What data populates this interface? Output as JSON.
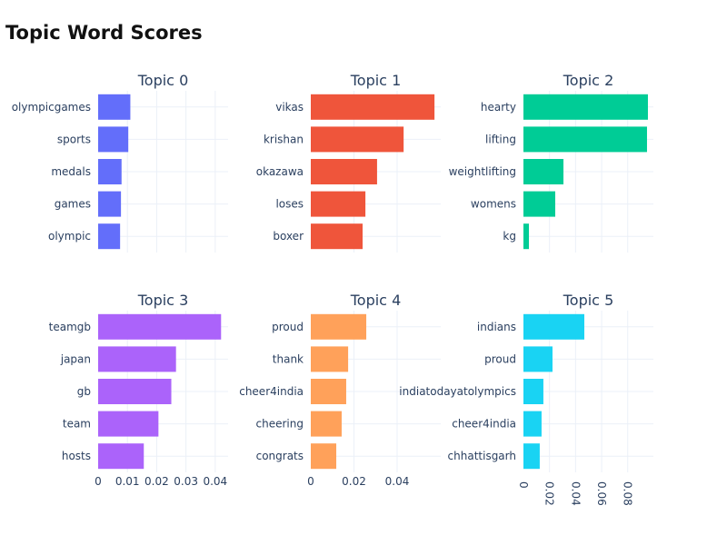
{
  "chart_data": {
    "type": "bar",
    "orientation": "horizontal",
    "title": "Topic Word Scores",
    "grid": true,
    "subplots": [
      {
        "title": "Topic 0",
        "color": "#636efa",
        "words": [
          "olympicgames",
          "sports",
          "medals",
          "games",
          "olympic"
        ],
        "values": [
          0.011,
          0.0103,
          0.008,
          0.0078,
          0.0075
        ],
        "xlim": [
          0,
          0.0444
        ],
        "ticks": [
          "0",
          "0.01",
          "0.02",
          "0.03",
          "0.04"
        ],
        "tick_values": [
          0,
          0.01,
          0.02,
          0.03,
          0.04
        ],
        "show_ticks": false
      },
      {
        "title": "Topic 1",
        "color": "#ef553b",
        "words": [
          "vikas",
          "krishan",
          "okazawa",
          "loses",
          "boxer"
        ],
        "values": [
          0.0573,
          0.043,
          0.0307,
          0.0253,
          0.024
        ],
        "xlim": [
          0,
          0.0602
        ],
        "ticks": [
          "0",
          "0.02",
          "0.04"
        ],
        "tick_values": [
          0,
          0.02,
          0.04
        ],
        "show_ticks": false
      },
      {
        "title": "Topic 2",
        "color": "#00cc96",
        "words": [
          "hearty",
          "lifting",
          "weightlifting",
          "womens",
          "kg"
        ],
        "values": [
          0.0955,
          0.0948,
          0.0307,
          0.0244,
          0.0042
        ],
        "xlim": [
          0,
          0.0997
        ],
        "ticks": [
          "0",
          "0.02",
          "0.04",
          "0.06",
          "0.08"
        ],
        "tick_values": [
          0,
          0.02,
          0.04,
          0.06,
          0.08
        ],
        "show_ticks": false
      },
      {
        "title": "Topic 3",
        "color": "#ab63fa",
        "words": [
          "teamgb",
          "japan",
          "gb",
          "team",
          "hosts"
        ],
        "values": [
          0.042,
          0.0266,
          0.025,
          0.0206,
          0.0156
        ],
        "xlim": [
          0,
          0.0444
        ],
        "ticks": [
          "0",
          "0.01",
          "0.02",
          "0.03",
          "0.04"
        ],
        "tick_values": [
          0,
          0.01,
          0.02,
          0.03,
          0.04
        ],
        "show_ticks": true
      },
      {
        "title": "Topic 4",
        "color": "#ffa15a",
        "words": [
          "proud",
          "thank",
          "cheer4india",
          "cheering",
          "congrats"
        ],
        "values": [
          0.0257,
          0.0173,
          0.0164,
          0.0143,
          0.0118
        ],
        "xlim": [
          0,
          0.0602
        ],
        "ticks": [
          "0",
          "0.02",
          "0.04"
        ],
        "tick_values": [
          0,
          0.02,
          0.04
        ],
        "show_ticks": true
      },
      {
        "title": "Topic 5",
        "color": "#19d3f3",
        "words": [
          "indians",
          "proud",
          "indiatodayatolympics",
          "cheer4india",
          "chhattisgarh"
        ],
        "values": [
          0.0467,
          0.0223,
          0.0153,
          0.0139,
          0.0125
        ],
        "xlim": [
          0,
          0.0997
        ],
        "ticks": [
          "0",
          "0.02",
          "0.04",
          "0.06",
          "0.08"
        ],
        "tick_values": [
          0,
          0.02,
          0.04,
          0.06,
          0.08
        ],
        "show_ticks": true,
        "tick_rotation": 90
      }
    ]
  }
}
